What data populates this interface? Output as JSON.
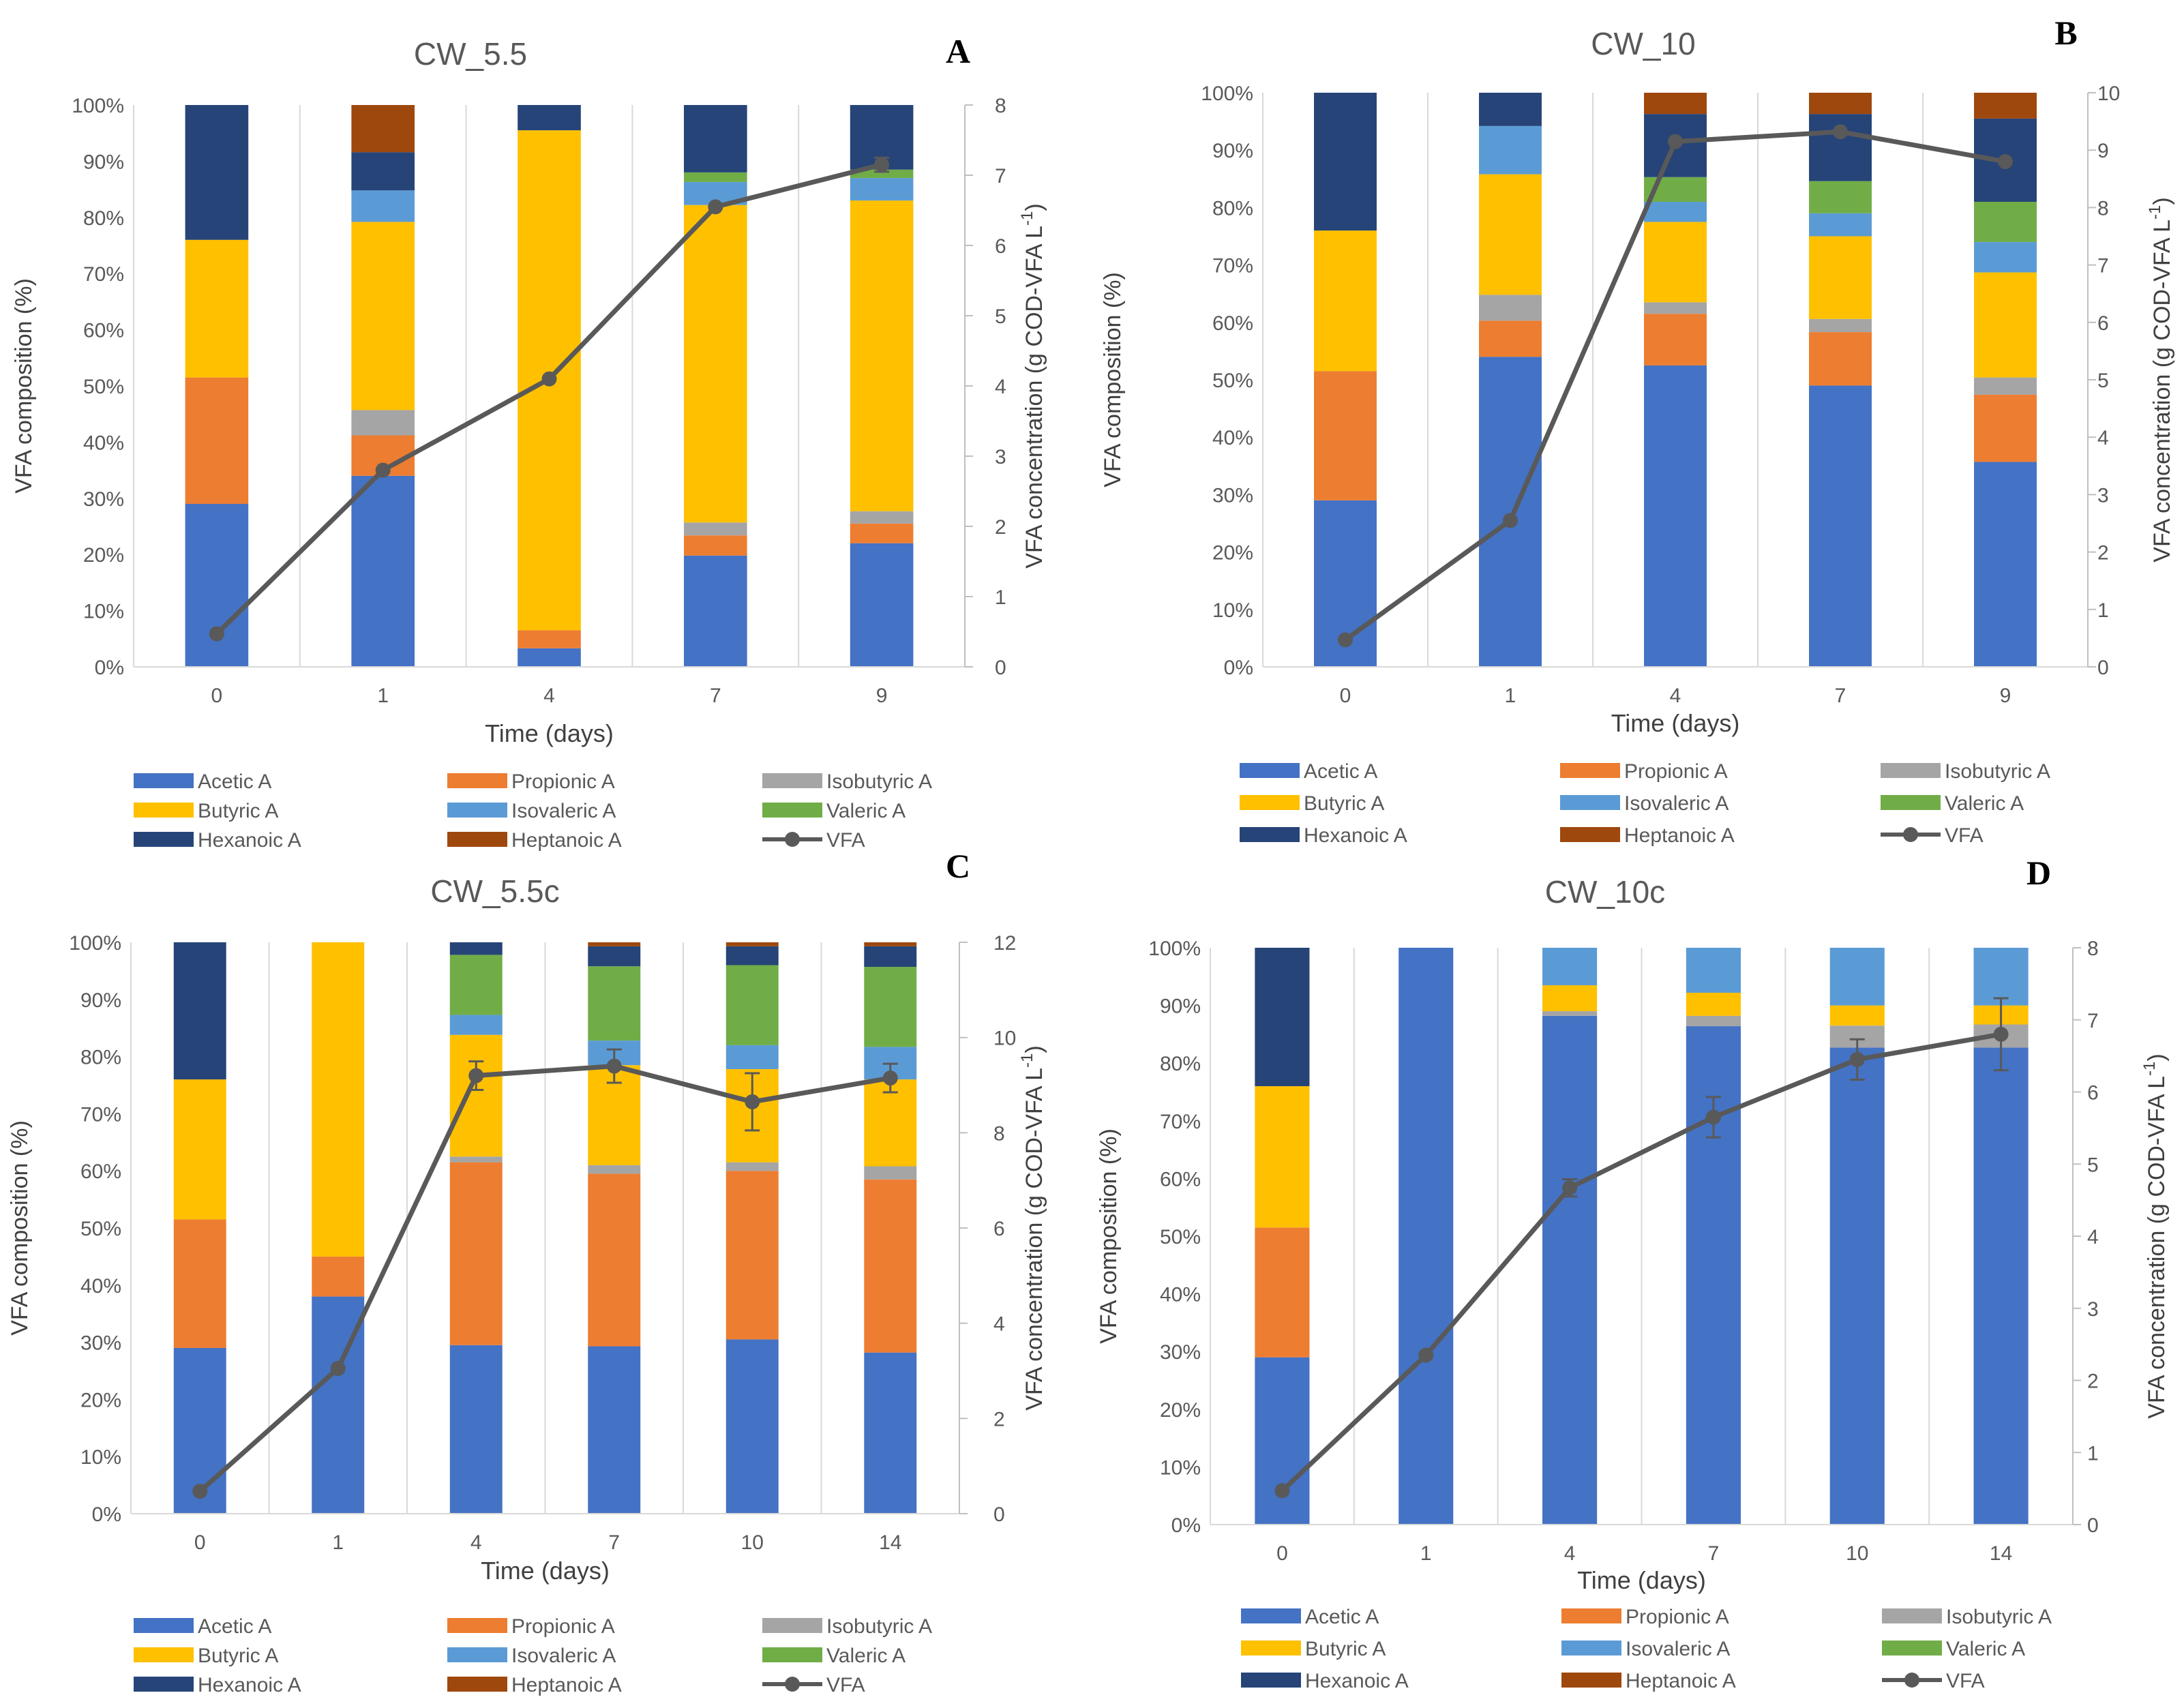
{
  "figure": {
    "colors": {
      "Acetic A": "#4472C4",
      "Propionic A": "#ED7D31",
      "Isobutyric A": "#A5A5A5",
      "Butyric A": "#FFC000",
      "Isovaleric A": "#5B9BD5",
      "Valeric A": "#70AD47",
      "Hexanoic A": "#264478",
      "Heptanoic A": "#9E480E",
      "VFA": "#595959"
    },
    "component_order": [
      "Acetic A",
      "Propionic A",
      "Isobutyric A",
      "Butyric A",
      "Isovaleric A",
      "Valeric A",
      "Hexanoic A",
      "Heptanoic A"
    ],
    "legend_order": [
      "Acetic A",
      "Propionic A",
      "Isobutyric A",
      "Butyric A",
      "Isovaleric A",
      "Valeric A",
      "Hexanoic A",
      "Heptanoic A",
      "VFA"
    ]
  },
  "chart_data": [
    {
      "type": "bar",
      "panel": "A",
      "title": "CW_5.5",
      "xlabel": "Time (days)",
      "ylabel": "VFA composition (%)",
      "y2label": "VFA concentration (g COD-VFA L",
      "y2label_sup": "-1",
      "y2label_tail": ")",
      "categories": [
        "0",
        "1",
        "4",
        "7",
        "9"
      ],
      "ylim": [
        0,
        100
      ],
      "y2lim": [
        0,
        8
      ],
      "y2ticks": [
        0,
        1,
        2,
        3,
        4,
        5,
        6,
        7,
        8
      ],
      "series": [
        {
          "name": "Acetic A",
          "values": [
            29,
            34,
            3.3,
            19.8,
            22
          ]
        },
        {
          "name": "Propionic A",
          "values": [
            22.5,
            7.2,
            3.2,
            3.6,
            3.5
          ]
        },
        {
          "name": "Isobutyric A",
          "values": [
            0,
            4.5,
            0,
            2.3,
            2.2
          ]
        },
        {
          "name": "Butyric A",
          "values": [
            24.5,
            33.5,
            89,
            56.5,
            55.3
          ]
        },
        {
          "name": "Isovaleric A",
          "values": [
            0,
            5.6,
            0,
            4.1,
            4
          ]
        },
        {
          "name": "Valeric A",
          "values": [
            0,
            0,
            0,
            1.7,
            1.5
          ]
        },
        {
          "name": "Hexanoic A",
          "values": [
            24,
            6.8,
            4.5,
            12,
            11.5
          ]
        },
        {
          "name": "Heptanoic A",
          "values": [
            0,
            8.4,
            0,
            0,
            0
          ]
        }
      ],
      "line": {
        "name": "VFA",
        "values": [
          0.47,
          2.8,
          4.1,
          6.55,
          7.15
        ],
        "err": [
          0,
          0,
          0,
          0,
          0.1
        ]
      }
    },
    {
      "type": "bar",
      "panel": "B",
      "title": "CW_10",
      "xlabel": "Time (days)",
      "ylabel": "VFA composition (%)",
      "y2label": "VFA concentration (g COD-VFA L",
      "y2label_sup": "-1",
      "y2label_tail": ")",
      "categories": [
        "0",
        "1",
        "4",
        "7",
        "9"
      ],
      "ylim": [
        0,
        100
      ],
      "y2lim": [
        0,
        10
      ],
      "y2ticks": [
        0,
        1,
        2,
        3,
        4,
        5,
        6,
        7,
        8,
        9,
        10
      ],
      "series": [
        {
          "name": "Acetic A",
          "values": [
            29,
            54,
            52.5,
            49,
            35.7
          ]
        },
        {
          "name": "Propionic A",
          "values": [
            22.5,
            6.3,
            9,
            9.3,
            11.7
          ]
        },
        {
          "name": "Isobutyric A",
          "values": [
            0,
            4.5,
            2,
            2.3,
            3
          ]
        },
        {
          "name": "Butyric A",
          "values": [
            24.5,
            21,
            14,
            14.4,
            18.3
          ]
        },
        {
          "name": "Isovaleric A",
          "values": [
            0,
            8.4,
            3.5,
            4,
            5.3
          ]
        },
        {
          "name": "Valeric A",
          "values": [
            0,
            0,
            4.3,
            5.6,
            7
          ]
        },
        {
          "name": "Hexanoic A",
          "values": [
            24,
            5.8,
            11,
            11.7,
            14.5
          ]
        },
        {
          "name": "Heptanoic A",
          "values": [
            0,
            0,
            3.7,
            3.7,
            4.5
          ]
        }
      ],
      "line": {
        "name": "VFA",
        "values": [
          0.47,
          2.55,
          9.15,
          9.32,
          8.8
        ],
        "err": [
          0,
          0,
          0,
          0,
          0
        ]
      }
    },
    {
      "type": "bar",
      "panel": "C",
      "title": "CW_5.5c",
      "xlabel": "Time (days)",
      "ylabel": "VFA composition (%)",
      "y2label": "VFA concentration (g COD-VFA L",
      "y2label_sup": "-1",
      "y2label_tail": ")",
      "categories": [
        "0",
        "1",
        "4",
        "7",
        "10",
        "14"
      ],
      "ylim": [
        0,
        100
      ],
      "y2lim": [
        0,
        12
      ],
      "y2ticks": [
        0,
        2,
        4,
        6,
        8,
        10,
        12
      ],
      "series": [
        {
          "name": "Acetic A",
          "values": [
            29,
            38,
            29.5,
            29.3,
            30.5,
            28.2
          ]
        },
        {
          "name": "Propionic A",
          "values": [
            22.5,
            7,
            32,
            30.2,
            29.5,
            30.3
          ]
        },
        {
          "name": "Isobutyric A",
          "values": [
            0,
            0,
            1,
            1.5,
            1.5,
            2.3
          ]
        },
        {
          "name": "Butyric A",
          "values": [
            24.5,
            55,
            21.3,
            17.5,
            16.3,
            15.2
          ]
        },
        {
          "name": "Isovaleric A",
          "values": [
            0,
            0,
            3.5,
            4.3,
            4.2,
            5.7
          ]
        },
        {
          "name": "Valeric A",
          "values": [
            0,
            0,
            10.5,
            13,
            14,
            14
          ]
        },
        {
          "name": "Hexanoic A",
          "values": [
            24,
            0,
            2.2,
            3.5,
            3.3,
            3.6
          ]
        },
        {
          "name": "Heptanoic A",
          "values": [
            0,
            0,
            0,
            0.7,
            0.7,
            0.7
          ]
        }
      ],
      "line": {
        "name": "VFA",
        "values": [
          0.47,
          3.05,
          9.2,
          9.4,
          8.65,
          9.15
        ],
        "err": [
          0,
          0,
          0.3,
          0.35,
          0.6,
          0.3
        ]
      }
    },
    {
      "type": "bar",
      "panel": "D",
      "title": "CW_10c",
      "xlabel": "Time (days)",
      "ylabel": "VFA composition (%)",
      "y2label": "VFA concentration (g COD-VFA L",
      "y2label_sup": "-1",
      "y2label_tail": ")",
      "categories": [
        "0",
        "1",
        "4",
        "7",
        "10",
        "14"
      ],
      "ylim": [
        0,
        100
      ],
      "y2lim": [
        0,
        8
      ],
      "y2ticks": [
        0,
        1,
        2,
        3,
        4,
        5,
        6,
        7,
        8
      ],
      "series": [
        {
          "name": "Acetic A",
          "values": [
            29,
            100,
            88.2,
            86.4,
            82.7,
            82.7
          ]
        },
        {
          "name": "Propionic A",
          "values": [
            22.5,
            0,
            0,
            0,
            0,
            0
          ]
        },
        {
          "name": "Isobutyric A",
          "values": [
            0,
            0,
            0.8,
            1.8,
            3.8,
            4
          ]
        },
        {
          "name": "Butyric A",
          "values": [
            24.5,
            0,
            4.5,
            4,
            3.5,
            3.3
          ]
        },
        {
          "name": "Isovaleric A",
          "values": [
            0,
            0,
            6.5,
            7.8,
            10,
            10
          ]
        },
        {
          "name": "Valeric A",
          "values": [
            0,
            0,
            0,
            0,
            0,
            0
          ]
        },
        {
          "name": "Hexanoic A",
          "values": [
            24,
            0,
            0,
            0,
            0,
            0
          ]
        },
        {
          "name": "Heptanoic A",
          "values": [
            0,
            0,
            0,
            0,
            0,
            0
          ]
        }
      ],
      "line": {
        "name": "VFA",
        "values": [
          0.47,
          2.35,
          4.67,
          5.65,
          6.45,
          6.8
        ],
        "err": [
          0,
          0,
          0.12,
          0.28,
          0.28,
          0.5
        ]
      }
    }
  ]
}
